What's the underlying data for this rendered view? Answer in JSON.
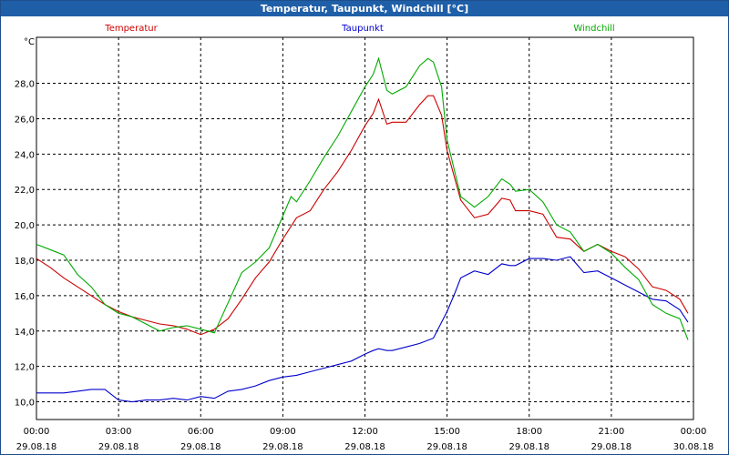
{
  "chart_data": {
    "type": "line",
    "title": "Temperatur, Taupunkt, Windchill [°C]",
    "ylabel": "°C",
    "xlabel": "",
    "ylim": [
      9.0,
      30.6
    ],
    "xlim": [
      0,
      24
    ],
    "yticks": [
      {
        "v": 10,
        "label": "10,0"
      },
      {
        "v": 12,
        "label": "12,0"
      },
      {
        "v": 14,
        "label": "14,0"
      },
      {
        "v": 16,
        "label": "16,0"
      },
      {
        "v": 18,
        "label": "18,0"
      },
      {
        "v": 20,
        "label": "20,0"
      },
      {
        "v": 22,
        "label": "22,0"
      },
      {
        "v": 24,
        "label": "24,0"
      },
      {
        "v": 26,
        "label": "26,0"
      },
      {
        "v": 28,
        "label": "28,0"
      }
    ],
    "xticks": [
      {
        "v": 0,
        "time": "00:00",
        "date": "29.08.18"
      },
      {
        "v": 3,
        "time": "03:00",
        "date": "29.08.18"
      },
      {
        "v": 6,
        "time": "06:00",
        "date": "29.08.18"
      },
      {
        "v": 9,
        "time": "09:00",
        "date": "29.08.18"
      },
      {
        "v": 12,
        "time": "12:00",
        "date": "29.08.18"
      },
      {
        "v": 15,
        "time": "15:00",
        "date": "29.08.18"
      },
      {
        "v": 18,
        "time": "18:00",
        "date": "29.08.18"
      },
      {
        "v": 21,
        "time": "21:00",
        "date": "29.08.18"
      },
      {
        "v": 24,
        "time": "00:00",
        "date": "30.08.18"
      }
    ],
    "grid": true,
    "series": [
      {
        "name": "Temperatur",
        "color": "#cc0000",
        "x": [
          0,
          0.5,
          1,
          1.5,
          2,
          2.5,
          3,
          3.5,
          4,
          4.5,
          5,
          5.5,
          6,
          6.5,
          7,
          7.5,
          8,
          8.5,
          9,
          9.5,
          10,
          10.5,
          11,
          11.5,
          12,
          12.3,
          12.5,
          12.8,
          13,
          13.5,
          14,
          14.3,
          14.5,
          14.8,
          15,
          15.5,
          16,
          16.5,
          17,
          17.3,
          17.5,
          18,
          18.5,
          19,
          19.5,
          20,
          20.5,
          21,
          21.5,
          22,
          22.5,
          23,
          23.5,
          23.8
        ],
        "values": [
          18.1,
          17.6,
          17.0,
          16.5,
          16.0,
          15.5,
          15.1,
          14.8,
          14.6,
          14.4,
          14.3,
          14.1,
          13.8,
          14.1,
          14.7,
          15.8,
          17.0,
          17.9,
          19.2,
          20.4,
          20.8,
          22.0,
          23.0,
          24.2,
          25.6,
          26.3,
          27.1,
          25.7,
          25.8,
          25.8,
          26.8,
          27.3,
          27.3,
          26.2,
          24.2,
          21.4,
          20.4,
          20.6,
          21.5,
          21.4,
          20.8,
          20.8,
          20.6,
          19.3,
          19.2,
          18.5,
          18.9,
          18.5,
          18.2,
          17.5,
          16.5,
          16.3,
          15.8,
          15.0
        ]
      },
      {
        "name": "Taupunkt",
        "color": "#0000cc",
        "x": [
          0,
          0.5,
          1,
          1.5,
          2,
          2.5,
          3,
          3.5,
          4,
          4.5,
          5,
          5.5,
          6,
          6.5,
          7,
          7.5,
          8,
          8.5,
          9,
          9.5,
          10,
          10.5,
          11,
          11.5,
          12,
          12.3,
          12.5,
          12.8,
          13,
          13.5,
          14,
          14.5,
          15,
          15.3,
          15.5,
          16,
          16.5,
          17,
          17.3,
          17.5,
          18,
          18.5,
          19,
          19.5,
          20,
          20.5,
          21,
          21.5,
          22,
          22.5,
          23,
          23.5,
          23.8
        ],
        "values": [
          10.5,
          10.5,
          10.5,
          10.6,
          10.7,
          10.7,
          10.1,
          10.0,
          10.1,
          10.1,
          10.2,
          10.1,
          10.3,
          10.2,
          10.6,
          10.7,
          10.9,
          11.2,
          11.4,
          11.5,
          11.7,
          11.9,
          12.1,
          12.3,
          12.7,
          12.9,
          13.0,
          12.9,
          12.9,
          13.1,
          13.3,
          13.6,
          15.1,
          16.2,
          17.0,
          17.4,
          17.2,
          17.8,
          17.7,
          17.7,
          18.1,
          18.1,
          18.0,
          18.2,
          17.3,
          17.4,
          17.0,
          16.6,
          16.2,
          15.8,
          15.7,
          15.2,
          14.5
        ]
      },
      {
        "name": "Windchill",
        "color": "#00aa00",
        "x": [
          0,
          0.5,
          1,
          1.5,
          2,
          2.5,
          3,
          3.5,
          4,
          4.5,
          5,
          5.5,
          6,
          6.5,
          7,
          7.5,
          8,
          8.5,
          9,
          9.3,
          9.5,
          10,
          10.5,
          11,
          11.5,
          12,
          12.3,
          12.5,
          12.8,
          13,
          13.5,
          14,
          14.3,
          14.5,
          14.8,
          15,
          15.5,
          16,
          16.5,
          17,
          17.3,
          17.5,
          18,
          18.5,
          19,
          19.5,
          20,
          20.5,
          21,
          21.5,
          22,
          22.5,
          23,
          23.5,
          23.8
        ],
        "values": [
          18.9,
          18.6,
          18.3,
          17.2,
          16.5,
          15.5,
          15.0,
          14.8,
          14.4,
          14.0,
          14.2,
          14.3,
          14.1,
          13.9,
          15.6,
          17.3,
          17.9,
          18.7,
          20.5,
          21.6,
          21.3,
          22.5,
          23.8,
          25.0,
          26.4,
          27.8,
          28.5,
          29.4,
          27.6,
          27.4,
          27.8,
          29.0,
          29.4,
          29.2,
          27.8,
          24.8,
          21.6,
          21.0,
          21.6,
          22.6,
          22.3,
          21.9,
          22.0,
          21.3,
          20.0,
          19.6,
          18.5,
          18.9,
          18.4,
          17.6,
          16.9,
          15.5,
          15.0,
          14.7,
          13.5
        ]
      }
    ]
  }
}
